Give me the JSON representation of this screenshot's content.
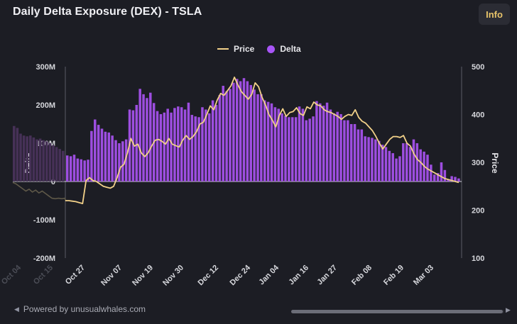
{
  "header": {
    "title": "Daily Delta Exposure (DEX) - TSLA",
    "info_label": "Info"
  },
  "legend": {
    "price_label": "Price",
    "delta_label": "Delta"
  },
  "footer": {
    "powered_by": "Powered by unusualwhales.com"
  },
  "colors": {
    "bar": "#9d4ee0",
    "bar_faded": "#463157",
    "price_line": "#f2d189",
    "price_faded": "#5e5848",
    "background": "#1c1d24"
  },
  "chart_data": {
    "type": "bar+line",
    "title": "Daily Delta Exposure (DEX) - TSLA",
    "ylabel": "Delta",
    "ylabel_right": "Price",
    "ylim": [
      -200000000,
      300000000
    ],
    "ylim_right": [
      100,
      500
    ],
    "yticks_left": [
      "300M",
      "200M",
      "100M",
      "0",
      "-100M",
      "-200M"
    ],
    "yticks_right": [
      "500",
      "400",
      "300",
      "200",
      "100"
    ],
    "x_ticks": [
      "Oct 04",
      "Oct 15",
      "Oct 27",
      "Nov 07",
      "Nov 19",
      "Nov 30",
      "Dec 12",
      "Dec 24",
      "Jan 04",
      "Jan 16",
      "Jan 27",
      "Feb 08",
      "Feb 19",
      "Mar 03"
    ],
    "faded_bars": [
      145,
      140,
      125,
      120,
      118,
      120,
      115,
      110,
      112,
      108,
      105,
      100,
      95,
      90,
      85,
      80
    ],
    "faded_price": [
      258,
      255,
      250,
      245,
      240,
      244,
      238,
      242,
      236,
      240,
      235,
      230,
      225,
      224,
      225,
      224,
      225
    ],
    "series": [
      {
        "name": "Delta",
        "values": [
          68,
          66,
          70,
          60,
          58,
          55,
          57,
          132,
          162,
          148,
          138,
          130,
          128,
          120,
          108,
          100,
          105,
          110,
          188,
          186,
          200,
          242,
          228,
          218,
          232,
          205,
          184,
          176,
          180,
          190,
          180,
          192,
          196,
          194,
          188,
          206,
          174,
          170,
          168,
          194,
          188,
          178,
          212,
          200,
          226,
          250,
          236,
          242,
          258,
          268,
          262,
          270,
          262,
          252,
          240,
          228,
          228,
          212,
          208,
          204,
          194,
          190,
          178,
          172,
          168,
          168,
          168,
          196,
          190,
          160,
          164,
          170,
          210,
          204,
          198,
          206,
          188,
          178,
          182,
          176,
          160,
          160,
          150,
          150,
          136,
          136,
          118,
          116,
          114,
          110,
          106,
          96,
          90,
          80,
          74,
          60,
          66,
          100,
          100,
          90,
          110,
          100,
          84,
          78,
          70,
          44,
          18,
          22,
          50,
          30,
          6,
          14,
          12,
          8
        ]
      },
      {
        "name": "Price",
        "values": [
          220,
          220,
          219,
          218,
          216,
          214,
          262,
          268,
          262,
          260,
          255,
          250,
          248,
          246,
          250,
          268,
          290,
          296,
          320,
          350,
          334,
          338,
          320,
          312,
          320,
          334,
          346,
          348,
          344,
          338,
          350,
          338,
          335,
          332,
          346,
          356,
          348,
          354,
          364,
          380,
          384,
          400,
          418,
          410,
          430,
          444,
          440,
          450,
          460,
          478,
          462,
          448,
          440,
          432,
          442,
          466,
          458,
          436,
          420,
          400,
          388,
          374,
          398,
          412,
          396,
          404,
          406,
          414,
          402,
          398,
          416,
          412,
          426,
          420,
          418,
          410,
          406,
          404,
          400,
          396,
          390,
          396,
          400,
          398,
          410,
          394,
          386,
          382,
          374,
          366,
          354,
          340,
          328,
          338,
          348,
          354,
          354,
          352,
          356,
          340,
          334,
          318,
          306,
          300,
          292,
          286,
          282,
          278,
          274,
          270,
          266,
          264,
          262,
          260,
          258
        ]
      }
    ]
  }
}
